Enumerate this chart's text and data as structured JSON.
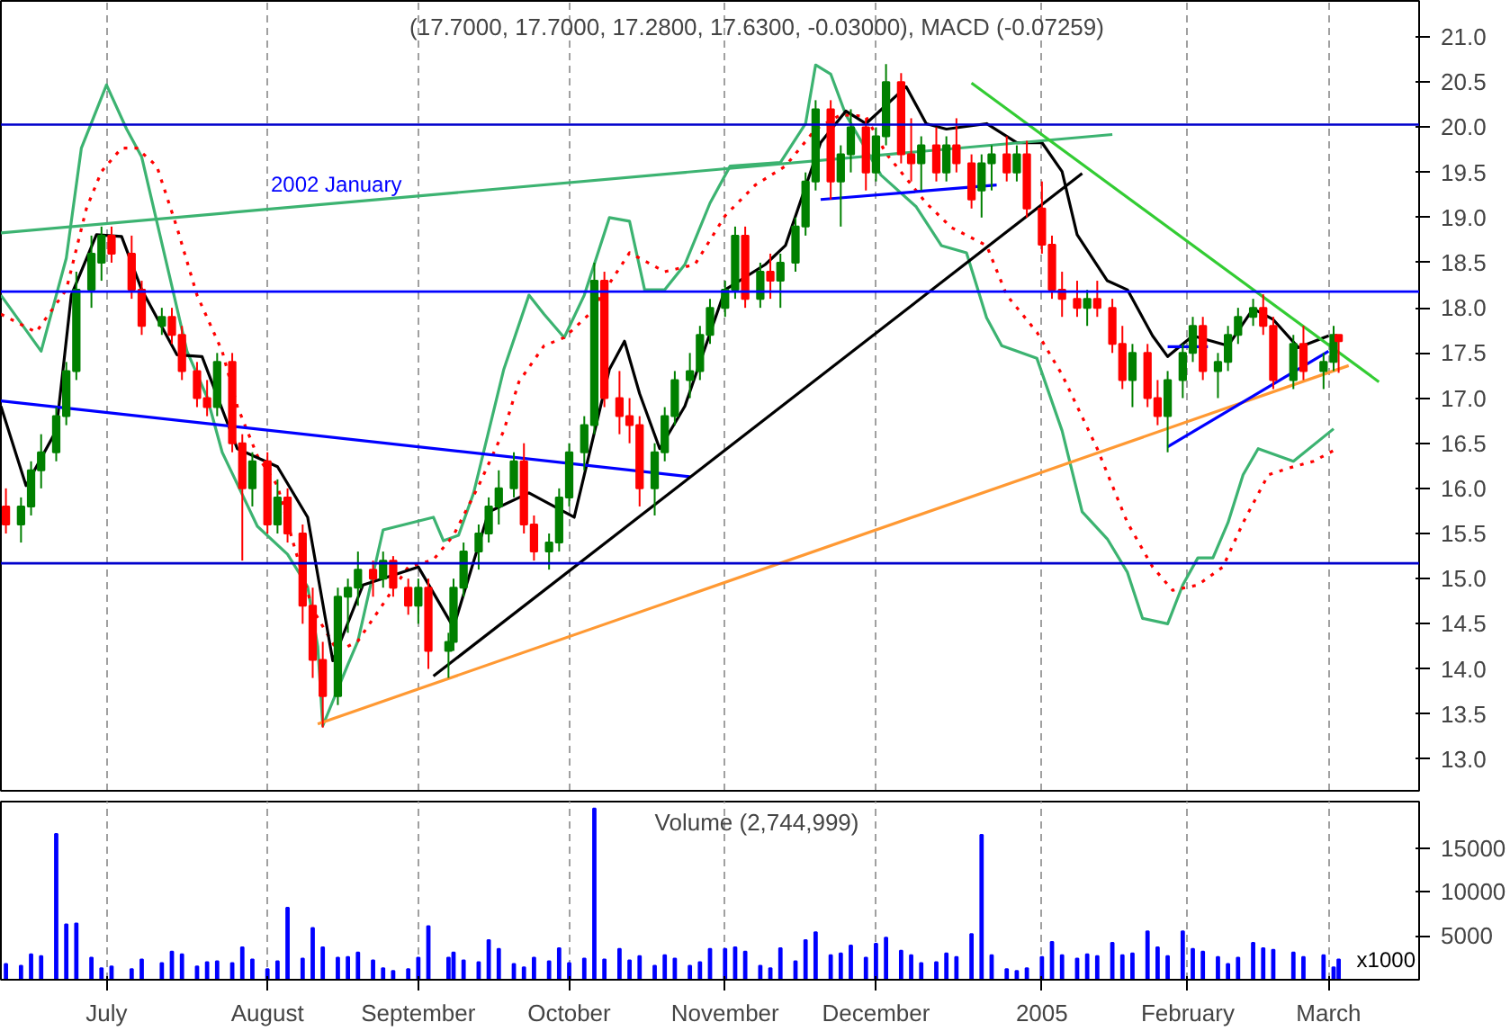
{
  "chart_data": [
    {
      "type": "candlestick",
      "title": "(17.7000, 17.7000, 17.2800, 17.6300, -0.03000), MACD (-0.07259)",
      "x": [
        "2004-06-11",
        "2004-06-14",
        "2004-06-16",
        "2004-06-18",
        "2004-06-21",
        "2004-06-23",
        "2004-06-25",
        "2004-06-28",
        "2004-06-30",
        "2004-07-02",
        "2004-07-06",
        "2004-07-08",
        "2004-07-12",
        "2004-07-14",
        "2004-07-16",
        "2004-07-19",
        "2004-07-21",
        "2004-07-23",
        "2004-07-26",
        "2004-07-28",
        "2004-07-30",
        "2004-08-02",
        "2004-08-04",
        "2004-08-06",
        "2004-08-09",
        "2004-08-11",
        "2004-08-13",
        "2004-08-16",
        "2004-08-18",
        "2004-08-20",
        "2004-08-23",
        "2004-08-25",
        "2004-08-27",
        "2004-08-30",
        "2004-09-01",
        "2004-09-03",
        "2004-09-07",
        "2004-09-08",
        "2004-09-10",
        "2004-09-13",
        "2004-09-15",
        "2004-09-17",
        "2004-09-20",
        "2004-09-22",
        "2004-09-24",
        "2004-09-27",
        "2004-09-29",
        "2004-10-01",
        "2004-10-04",
        "2004-10-06",
        "2004-10-08",
        "2004-10-11",
        "2004-10-13",
        "2004-10-15",
        "2004-10-18",
        "2004-10-20",
        "2004-10-22",
        "2004-10-25",
        "2004-10-27",
        "2004-10-29",
        "2004-11-01",
        "2004-11-03",
        "2004-11-05",
        "2004-11-08",
        "2004-11-10",
        "2004-11-12",
        "2004-11-15",
        "2004-11-17",
        "2004-11-19",
        "2004-11-22",
        "2004-11-24",
        "2004-11-26",
        "2004-11-29",
        "2004-12-01",
        "2004-12-03",
        "2004-12-06",
        "2004-12-08",
        "2004-12-10",
        "2004-12-13",
        "2004-12-15",
        "2004-12-17",
        "2004-12-20",
        "2004-12-22",
        "2004-12-24",
        "2004-12-27",
        "2004-12-29",
        "2004-12-31",
        "2005-01-03",
        "2005-01-05",
        "2005-01-07",
        "2005-01-10",
        "2005-01-12",
        "2005-01-14",
        "2005-01-17",
        "2005-01-19",
        "2005-01-21",
        "2005-01-24",
        "2005-01-26",
        "2005-01-28",
        "2005-01-31",
        "2005-02-02",
        "2005-02-04",
        "2005-02-07",
        "2005-02-09",
        "2005-02-11",
        "2005-02-14",
        "2005-02-16",
        "2005-02-18",
        "2005-02-22",
        "2005-02-24",
        "2005-02-28",
        "2005-03-02",
        "2005-03-03"
      ],
      "ohlc": [
        [
          15.8,
          16.0,
          15.5,
          15.6
        ],
        [
          15.6,
          15.9,
          15.4,
          15.8
        ],
        [
          15.8,
          16.3,
          15.7,
          16.2
        ],
        [
          16.2,
          16.6,
          16.0,
          16.4
        ],
        [
          16.4,
          16.9,
          16.3,
          16.8
        ],
        [
          16.8,
          17.4,
          16.7,
          17.3
        ],
        [
          17.3,
          18.4,
          17.2,
          18.2
        ],
        [
          18.2,
          18.8,
          18.0,
          18.6
        ],
        [
          18.5,
          18.9,
          18.3,
          18.8
        ],
        [
          18.8,
          18.9,
          18.5,
          18.6
        ],
        [
          18.6,
          18.8,
          18.1,
          18.2
        ],
        [
          18.2,
          18.3,
          17.7,
          17.8
        ],
        [
          17.8,
          18.0,
          17.7,
          17.9
        ],
        [
          17.9,
          18.0,
          17.6,
          17.7
        ],
        [
          17.7,
          17.8,
          17.2,
          17.3
        ],
        [
          17.3,
          17.4,
          16.9,
          17.0
        ],
        [
          17.0,
          17.2,
          16.8,
          16.9
        ],
        [
          16.9,
          17.5,
          16.8,
          17.4
        ],
        [
          17.4,
          17.5,
          16.4,
          16.5
        ],
        [
          16.5,
          16.6,
          15.2,
          16.0
        ],
        [
          16.0,
          16.4,
          15.8,
          16.3
        ],
        [
          16.3,
          16.4,
          15.5,
          15.6
        ],
        [
          15.6,
          16.1,
          15.5,
          15.9
        ],
        [
          15.9,
          16.0,
          15.4,
          15.5
        ],
        [
          15.5,
          15.6,
          14.5,
          14.7
        ],
        [
          14.7,
          14.9,
          13.9,
          14.1
        ],
        [
          14.1,
          14.3,
          13.35,
          13.7
        ],
        [
          13.7,
          14.9,
          13.6,
          14.8
        ],
        [
          14.8,
          15.0,
          14.4,
          14.9
        ],
        [
          14.9,
          15.3,
          14.7,
          15.1
        ],
        [
          15.1,
          15.2,
          14.8,
          15.0
        ],
        [
          15.0,
          15.3,
          14.9,
          15.2
        ],
        [
          15.2,
          15.25,
          14.8,
          14.9
        ],
        [
          14.9,
          15.0,
          14.6,
          14.7
        ],
        [
          14.7,
          15.0,
          14.5,
          14.9
        ],
        [
          14.9,
          15.0,
          14.0,
          14.2
        ],
        [
          14.2,
          14.4,
          13.9,
          14.3
        ],
        [
          14.3,
          15.0,
          14.2,
          14.9
        ],
        [
          14.9,
          15.4,
          14.8,
          15.3
        ],
        [
          15.3,
          15.6,
          15.1,
          15.5
        ],
        [
          15.5,
          15.9,
          15.4,
          15.8
        ],
        [
          15.8,
          16.2,
          15.6,
          16.0
        ],
        [
          16.0,
          16.4,
          15.9,
          16.3
        ],
        [
          16.3,
          16.5,
          15.5,
          15.6
        ],
        [
          15.6,
          15.7,
          15.2,
          15.3
        ],
        [
          15.3,
          15.5,
          15.1,
          15.4
        ],
        [
          15.4,
          16.0,
          15.3,
          15.9
        ],
        [
          15.9,
          16.5,
          15.8,
          16.4
        ],
        [
          16.4,
          16.8,
          16.2,
          16.7
        ],
        [
          16.7,
          18.5,
          16.6,
          18.3
        ],
        [
          18.3,
          18.4,
          16.9,
          17.0
        ],
        [
          17.0,
          17.3,
          16.6,
          16.8
        ],
        [
          16.8,
          17.0,
          16.5,
          16.7
        ],
        [
          16.7,
          16.8,
          15.8,
          16.0
        ],
        [
          16.0,
          16.5,
          15.7,
          16.4
        ],
        [
          16.4,
          16.9,
          16.3,
          16.8
        ],
        [
          16.8,
          17.3,
          16.7,
          17.2
        ],
        [
          17.2,
          17.5,
          17.0,
          17.3
        ],
        [
          17.3,
          17.8,
          17.2,
          17.7
        ],
        [
          17.7,
          18.1,
          17.6,
          18.0
        ],
        [
          18.0,
          18.3,
          17.9,
          18.2
        ],
        [
          18.2,
          18.9,
          18.1,
          18.8
        ],
        [
          18.8,
          18.9,
          18.0,
          18.1
        ],
        [
          18.1,
          18.5,
          18.0,
          18.4
        ],
        [
          18.4,
          18.6,
          18.1,
          18.3
        ],
        [
          18.3,
          18.6,
          18.0,
          18.5
        ],
        [
          18.5,
          19.0,
          18.4,
          18.9
        ],
        [
          18.9,
          19.5,
          18.8,
          19.4
        ],
        [
          19.4,
          20.3,
          19.3,
          20.2
        ],
        [
          20.2,
          20.3,
          19.2,
          19.4
        ],
        [
          19.4,
          19.8,
          18.9,
          19.7
        ],
        [
          19.7,
          20.2,
          19.5,
          20.0
        ],
        [
          20.0,
          20.1,
          19.3,
          19.5
        ],
        [
          19.5,
          20.0,
          19.4,
          19.9
        ],
        [
          19.9,
          20.7,
          19.8,
          20.5
        ],
        [
          20.5,
          20.6,
          19.6,
          19.7
        ],
        [
          19.7,
          20.1,
          19.4,
          19.6
        ],
        [
          19.6,
          19.9,
          19.3,
          19.8
        ],
        [
          19.8,
          20.0,
          19.4,
          19.5
        ],
        [
          19.5,
          19.9,
          19.4,
          19.8
        ],
        [
          19.8,
          20.1,
          19.5,
          19.6
        ],
        [
          19.6,
          19.7,
          19.1,
          19.2
        ],
        [
          19.3,
          19.7,
          19.0,
          19.6
        ],
        [
          19.6,
          19.8,
          19.3,
          19.7
        ],
        [
          19.7,
          19.9,
          19.4,
          19.5
        ],
        [
          19.5,
          19.8,
          19.4,
          19.7
        ],
        [
          19.7,
          19.85,
          19.0,
          19.1
        ],
        [
          19.1,
          19.4,
          18.6,
          18.7
        ],
        [
          18.7,
          18.8,
          18.1,
          18.2
        ],
        [
          18.2,
          18.4,
          17.9,
          18.1
        ],
        [
          18.1,
          18.3,
          17.9,
          18.0
        ],
        [
          18.0,
          18.2,
          17.8,
          18.1
        ],
        [
          18.1,
          18.3,
          17.9,
          18.0
        ],
        [
          18.0,
          18.1,
          17.5,
          17.6
        ],
        [
          17.6,
          17.8,
          17.1,
          17.2
        ],
        [
          17.2,
          17.6,
          16.9,
          17.5
        ],
        [
          17.5,
          17.6,
          16.9,
          17.0
        ],
        [
          17.0,
          17.2,
          16.7,
          16.8
        ],
        [
          16.8,
          17.3,
          16.4,
          17.2
        ],
        [
          17.2,
          17.6,
          17.0,
          17.5
        ],
        [
          17.5,
          17.9,
          17.4,
          17.8
        ],
        [
          17.8,
          17.9,
          17.2,
          17.3
        ],
        [
          17.3,
          17.5,
          17.0,
          17.4
        ],
        [
          17.4,
          17.8,
          17.3,
          17.7
        ],
        [
          17.7,
          18.0,
          17.6,
          17.9
        ],
        [
          17.9,
          18.1,
          17.8,
          18.0
        ],
        [
          18.0,
          18.15,
          17.7,
          17.8
        ],
        [
          17.8,
          17.9,
          17.1,
          17.2
        ],
        [
          17.2,
          17.7,
          17.1,
          17.6
        ],
        [
          17.6,
          17.8,
          17.2,
          17.3
        ],
        [
          17.3,
          17.5,
          17.1,
          17.4
        ],
        [
          17.4,
          17.8,
          17.3,
          17.7
        ],
        [
          17.7,
          17.7,
          17.28,
          17.63
        ]
      ],
      "series": [
        {
          "type": "line",
          "color": "#3cb371",
          "x": [
            "2004-06-10",
            "2004-06-18",
            "2004-06-23",
            "2004-06-26",
            "2004-07-01",
            "2004-07-05",
            "2004-07-08",
            "2004-07-14",
            "2004-07-17",
            "2004-07-21",
            "2004-07-24",
            "2004-07-31",
            "2004-08-06",
            "2004-08-10",
            "2004-08-12",
            "2004-08-13",
            "2004-08-18",
            "2004-08-20",
            "2004-08-25",
            "2004-09-04",
            "2004-09-06",
            "2004-09-09",
            "2004-09-12",
            "2004-09-18",
            "2004-09-23",
            "2004-09-26",
            "2004-09-30",
            "2004-10-04",
            "2004-10-09",
            "2004-10-13",
            "2004-10-16",
            "2004-10-20",
            "2004-10-24",
            "2004-10-29",
            "2004-11-02",
            "2004-11-12",
            "2004-11-17",
            "2004-11-19",
            "2004-11-22",
            "2004-11-25",
            "2004-12-02",
            "2004-12-09",
            "2004-12-14",
            "2004-12-19",
            "2004-12-23",
            "2004-12-26",
            "2005-01-02",
            "2005-01-07",
            "2005-01-11",
            "2005-01-16",
            "2005-01-20",
            "2005-01-23",
            "2005-01-28",
            "2005-01-31",
            "2005-02-03",
            "2005-02-06",
            "2005-02-09",
            "2005-02-12",
            "2005-02-15",
            "2005-02-22",
            "2005-03-02"
          ],
          "values": [
            18.14,
            17.52,
            18.55,
            19.77,
            20.47,
            19.98,
            19.67,
            18.24,
            17.52,
            17.01,
            16.4,
            15.58,
            15.27,
            14.91,
            14.25,
            13.37,
            14.05,
            14.31,
            15.54,
            15.68,
            15.42,
            15.48,
            15.95,
            17.32,
            18.14,
            17.93,
            17.67,
            18.14,
            19.0,
            18.96,
            18.2,
            18.2,
            18.48,
            19.16,
            19.57,
            19.61,
            20.04,
            20.69,
            20.59,
            20.14,
            19.47,
            19.12,
            18.69,
            18.61,
            17.89,
            17.58,
            17.44,
            16.64,
            15.74,
            15.44,
            15.07,
            14.56,
            14.5,
            14.93,
            15.23,
            15.23,
            15.62,
            16.15,
            16.44,
            16.3,
            16.66
          ]
        },
        {
          "type": "line",
          "color": "#ff0000",
          "line_style": "dotted",
          "x": [
            "2004-06-10",
            "2004-06-17",
            "2004-06-23",
            "2004-06-27",
            "2004-06-30",
            "2004-07-04",
            "2004-07-07",
            "2004-07-11",
            "2004-07-15",
            "2004-07-19",
            "2004-07-24",
            "2004-07-27",
            "2004-07-31",
            "2004-08-04",
            "2004-08-07",
            "2004-08-11",
            "2004-08-16",
            "2004-08-20",
            "2004-08-25",
            "2004-08-30",
            "2004-09-04",
            "2004-09-08",
            "2004-09-13",
            "2004-09-18",
            "2004-09-21",
            "2004-09-26",
            "2004-09-30",
            "2004-10-05",
            "2004-10-13",
            "2004-10-20",
            "2004-10-26",
            "2004-11-01",
            "2004-11-07",
            "2004-11-13",
            "2004-11-19",
            "2004-11-24",
            "2004-11-29",
            "2004-12-03",
            "2004-12-11",
            "2004-12-16",
            "2004-12-23",
            "2004-12-27",
            "2005-01-02",
            "2005-01-07",
            "2005-01-14",
            "2005-01-20",
            "2005-01-25",
            "2005-01-29",
            "2005-02-03",
            "2005-02-08",
            "2005-02-12",
            "2005-02-17",
            "2005-02-22",
            "2005-02-26",
            "2005-03-02"
          ],
          "values": [
            17.93,
            17.73,
            18.2,
            19.1,
            19.51,
            19.77,
            19.77,
            19.57,
            18.89,
            18.14,
            17.52,
            16.91,
            16.36,
            16.03,
            15.42,
            14.66,
            14.19,
            14.31,
            14.72,
            15.13,
            15.21,
            15.48,
            16.03,
            16.64,
            17.18,
            17.58,
            17.67,
            17.93,
            18.61,
            18.4,
            18.48,
            19.02,
            19.36,
            19.57,
            19.98,
            20.14,
            20.12,
            19.71,
            19.16,
            18.89,
            18.69,
            18.14,
            17.73,
            17.26,
            16.44,
            15.62,
            15.13,
            14.87,
            14.93,
            15.13,
            15.62,
            16.15,
            16.24,
            16.3,
            16.42
          ]
        },
        {
          "type": "line",
          "color": "#000000",
          "x": [
            "2004-06-10",
            "2004-06-15",
            "2004-06-21",
            "2004-06-24",
            "2004-06-29",
            "2004-07-04",
            "2004-07-08",
            "2004-07-15",
            "2004-07-20",
            "2004-07-27",
            "2004-08-04",
            "2004-08-10",
            "2004-08-15",
            "2004-08-21",
            "2004-09-01",
            "2004-09-08",
            "2004-09-15",
            "2004-09-23",
            "2004-10-02",
            "2004-10-09",
            "2004-10-12",
            "2004-10-15",
            "2004-10-19",
            "2004-10-24",
            "2004-11-01",
            "2004-11-09",
            "2004-11-13",
            "2004-11-20",
            "2004-11-25",
            "2004-11-29",
            "2004-12-07",
            "2004-12-11",
            "2004-12-15",
            "2004-12-23",
            "2004-12-29",
            "2005-01-03",
            "2005-01-07",
            "2005-01-10",
            "2005-01-16",
            "2005-01-20",
            "2005-01-25",
            "2005-01-28",
            "2005-02-02",
            "2005-02-09",
            "2005-02-14",
            "2005-02-18",
            "2005-02-23",
            "2005-03-01"
          ],
          "values": [
            16.91,
            16.03,
            16.64,
            18.14,
            18.81,
            18.79,
            18.2,
            17.48,
            17.46,
            16.44,
            16.24,
            15.68,
            14.09,
            14.93,
            15.13,
            14.46,
            15.74,
            15.95,
            15.68,
            17.32,
            17.63,
            17.05,
            16.44,
            16.91,
            18.2,
            18.48,
            18.69,
            19.83,
            20.18,
            20.04,
            20.45,
            20.04,
            19.98,
            20.04,
            19.83,
            19.83,
            19.51,
            18.81,
            18.3,
            18.2,
            17.69,
            17.46,
            17.69,
            17.58,
            17.99,
            17.87,
            17.56,
            17.69
          ]
        },
        {
          "type": "line",
          "color": "#3cb371",
          "x": [
            "2004-06-10",
            "2005-01-17"
          ],
          "values": [
            18.83,
            19.92
          ]
        },
        {
          "type": "line",
          "color": "#0000ff",
          "x": [
            "2004-06-10",
            "2004-10-25"
          ],
          "values": [
            16.97,
            16.13
          ]
        },
        {
          "type": "line",
          "color": "#000000",
          "x": [
            "2004-09-04",
            "2005-01-11"
          ],
          "values": [
            13.92,
            19.49
          ]
        },
        {
          "type": "line",
          "color": "#ff9933",
          "x": [
            "2004-08-12",
            "2005-03-05"
          ],
          "values": [
            13.39,
            17.36
          ]
        },
        {
          "type": "line",
          "color": "#33cc33",
          "x": [
            "2004-12-20",
            "2005-03-11"
          ],
          "values": [
            20.49,
            17.18
          ]
        },
        {
          "type": "line",
          "color": "#0000ff",
          "x": [
            "2005-01-28",
            "2005-03-01"
          ],
          "values": [
            16.46,
            17.52
          ]
        },
        {
          "type": "line",
          "color": "#0000ff",
          "x": [
            "2004-11-20",
            "2004-12-25"
          ],
          "values": [
            19.2,
            19.36
          ]
        },
        {
          "type": "line",
          "color": "#0000ff",
          "x": [
            "2005-01-28",
            "2005-02-05"
          ],
          "values": [
            17.57,
            17.57
          ]
        }
      ],
      "ref_lines": [
        {
          "axis": "y",
          "value": 20.03,
          "color": "#0000cc"
        },
        {
          "axis": "y",
          "value": 18.18,
          "color": "#0000ff"
        },
        {
          "axis": "y",
          "value": 15.17,
          "color": "#0000cc"
        }
      ],
      "annotations": [
        "2002 January"
      ],
      "xlim": [
        "2004-06-10",
        "2005-03-19"
      ],
      "xticks": [
        {
          "value": "2004-07-01",
          "label": null
        },
        {
          "value": "2004-08-02",
          "label": null
        },
        {
          "value": "2004-09-01",
          "label": null
        },
        {
          "value": "2004-10-01",
          "label": null
        },
        {
          "value": "2004-11-01",
          "label": null
        },
        {
          "value": "2004-12-01",
          "label": null
        },
        {
          "value": "2005-01-03",
          "label": null
        },
        {
          "value": "2005-02-01",
          "label": null
        },
        {
          "value": "2005-03-01",
          "label": null
        }
      ],
      "ylim": [
        12.65,
        21.4
      ],
      "yticks": [
        {
          "value": 13,
          "label": "13.0"
        },
        {
          "value": 13.5,
          "label": "13.5"
        },
        {
          "value": 14,
          "label": "14.0"
        },
        {
          "value": 14.5,
          "label": "14.5"
        },
        {
          "value": 15,
          "label": "15.0"
        },
        {
          "value": 15.5,
          "label": "15.5"
        },
        {
          "value": 16,
          "label": "16.0"
        },
        {
          "value": 16.5,
          "label": "16.5"
        },
        {
          "value": 17,
          "label": "17.0"
        },
        {
          "value": 17.5,
          "label": "17.5"
        },
        {
          "value": 18,
          "label": "18.0"
        },
        {
          "value": 18.5,
          "label": "18.5"
        },
        {
          "value": 19,
          "label": "19.0"
        },
        {
          "value": 19.5,
          "label": "19.5"
        },
        {
          "value": 20,
          "label": "20.0"
        },
        {
          "value": 20.5,
          "label": "20.5"
        },
        {
          "value": 21,
          "label": "21.0"
        }
      ],
      "grid": "x",
      "tick_labels": "y"
    },
    {
      "type": "bar",
      "title": "Volume (2,744,999)",
      "annotations": [
        "x1000"
      ],
      "color": "#0000ff",
      "x": [
        "2004-06-11",
        "2004-06-14",
        "2004-06-16",
        "2004-06-18",
        "2004-06-21",
        "2004-06-23",
        "2004-06-25",
        "2004-06-28",
        "2004-06-30",
        "2004-07-02",
        "2004-07-06",
        "2004-07-08",
        "2004-07-12",
        "2004-07-14",
        "2004-07-16",
        "2004-07-19",
        "2004-07-21",
        "2004-07-23",
        "2004-07-26",
        "2004-07-28",
        "2004-07-30",
        "2004-08-02",
        "2004-08-04",
        "2004-08-06",
        "2004-08-09",
        "2004-08-11",
        "2004-08-13",
        "2004-08-16",
        "2004-08-18",
        "2004-08-20",
        "2004-08-23",
        "2004-08-25",
        "2004-08-27",
        "2004-08-30",
        "2004-09-01",
        "2004-09-03",
        "2004-09-07",
        "2004-09-08",
        "2004-09-10",
        "2004-09-13",
        "2004-09-15",
        "2004-09-17",
        "2004-09-20",
        "2004-09-22",
        "2004-09-24",
        "2004-09-27",
        "2004-09-29",
        "2004-10-01",
        "2004-10-04",
        "2004-10-06",
        "2004-10-08",
        "2004-10-11",
        "2004-10-13",
        "2004-10-15",
        "2004-10-18",
        "2004-10-20",
        "2004-10-22",
        "2004-10-25",
        "2004-10-27",
        "2004-10-29",
        "2004-11-01",
        "2004-11-03",
        "2004-11-05",
        "2004-11-08",
        "2004-11-10",
        "2004-11-12",
        "2004-11-15",
        "2004-11-17",
        "2004-11-19",
        "2004-11-22",
        "2004-11-24",
        "2004-11-26",
        "2004-11-29",
        "2004-12-01",
        "2004-12-03",
        "2004-12-06",
        "2004-12-08",
        "2004-12-10",
        "2004-12-13",
        "2004-12-15",
        "2004-12-17",
        "2004-12-20",
        "2004-12-22",
        "2004-12-24",
        "2004-12-27",
        "2004-12-29",
        "2004-12-31",
        "2005-01-03",
        "2005-01-05",
        "2005-01-07",
        "2005-01-10",
        "2005-01-12",
        "2005-01-14",
        "2005-01-17",
        "2005-01-19",
        "2005-01-21",
        "2005-01-24",
        "2005-01-26",
        "2005-01-28",
        "2005-01-31",
        "2005-02-02",
        "2005-02-04",
        "2005-02-07",
        "2005-02-09",
        "2005-02-11",
        "2005-02-14",
        "2005-02-16",
        "2005-02-18",
        "2005-02-22",
        "2005-02-24",
        "2005-02-28",
        "2005-03-02",
        "2005-03-03"
      ],
      "values": [
        1800,
        1600,
        2900,
        2700,
        16600,
        6300,
        6400,
        2500,
        1300,
        1500,
        1200,
        2300,
        1900,
        3200,
        2900,
        1500,
        2000,
        2100,
        1900,
        3700,
        2300,
        1200,
        2100,
        8200,
        2400,
        5900,
        3700,
        2500,
        2600,
        3100,
        2200,
        1300,
        1000,
        1200,
        2500,
        6100,
        2500,
        3100,
        2200,
        2000,
        4500,
        3500,
        1800,
        1400,
        2500,
        2100,
        3600,
        1900,
        2400,
        19500,
        2300,
        3500,
        2200,
        2700,
        1600,
        2800,
        2400,
        1600,
        2000,
        3500,
        3500,
        3700,
        3200,
        1600,
        1300,
        3600,
        2100,
        4500,
        5400,
        2800,
        3000,
        3900,
        2500,
        4100,
        4800,
        3300,
        2800,
        1900,
        2000,
        3000,
        2600,
        5200,
        16500,
        2800,
        1200,
        1000,
        1300,
        2600,
        4300,
        2800,
        2400,
        2900,
        2700,
        4200,
        2800,
        3000,
        5500,
        3700,
        2700,
        5500,
        3500,
        3200,
        2600,
        1800,
        2500,
        4200,
        3600,
        3400,
        3100,
        2600,
        2800,
        1400,
        2300
      ],
      "xlim": [
        "2004-06-10",
        "2005-03-19"
      ],
      "xticks": [
        {
          "value": "2004-07-01",
          "label": "July"
        },
        {
          "value": "2004-08-02",
          "label": "August"
        },
        {
          "value": "2004-09-01",
          "label": "September"
        },
        {
          "value": "2004-10-01",
          "label": "October"
        },
        {
          "value": "2004-11-01",
          "label": "November"
        },
        {
          "value": "2004-12-01",
          "label": "December"
        },
        {
          "value": "2005-01-03",
          "label": "2005"
        },
        {
          "value": "2005-02-01",
          "label": "February"
        },
        {
          "value": "2005-03-01",
          "label": "March"
        }
      ],
      "ylim": [
        0,
        20300
      ],
      "yticks": [
        5000,
        10000,
        15000
      ],
      "grid": "x"
    }
  ]
}
